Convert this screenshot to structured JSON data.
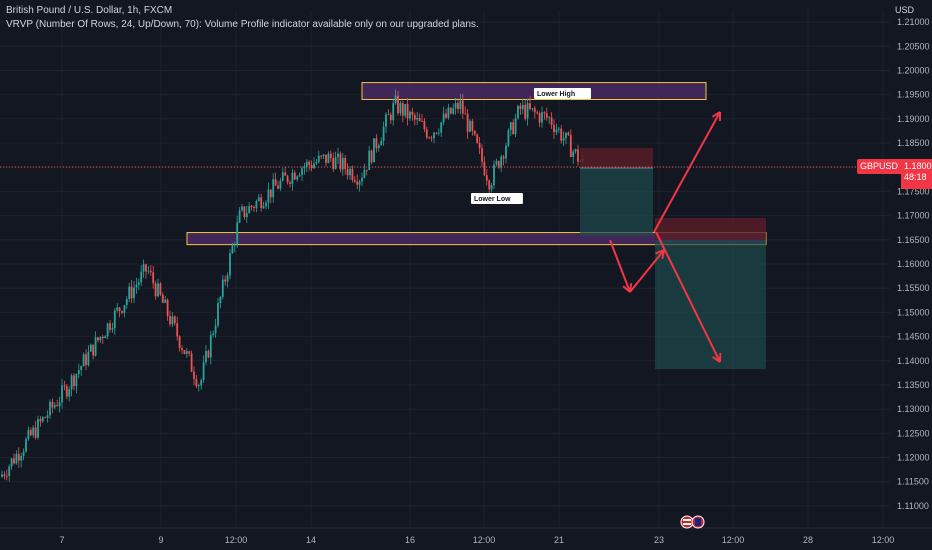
{
  "legend": {
    "symbol_line": "British Pound / U.S. Dollar, 1h, FXCM",
    "indicator_line": "VRVP (Number Of Rows, 24, Up/Down, 70): Volume Profile indicator available only on our upgraded plans."
  },
  "axis": {
    "currency": "USD",
    "y_ticks": [
      "1.21000",
      "1.20500",
      "1.20000",
      "1.19500",
      "1.19000",
      "1.18500",
      "1.18000",
      "1.17500",
      "1.17000",
      "1.16500",
      "1.16000",
      "1.15500",
      "1.15000",
      "1.14500",
      "1.14000",
      "1.13500",
      "1.13000",
      "1.12500",
      "1.12000",
      "1.11500",
      "1.11000"
    ],
    "x_ticks": [
      "7",
      "9",
      "12:00",
      "14",
      "16",
      "12:00",
      "21",
      "23",
      "12:00",
      "28",
      "12:00"
    ]
  },
  "price_label": {
    "symbol": "GBPUSD",
    "price": "1.18005",
    "countdown": "48:18"
  },
  "annotations": {
    "lower_high": "Lower High",
    "lower_low": "Lower Low"
  },
  "colors": {
    "background": "#131722",
    "up": "#26a69a",
    "down": "#ef5350",
    "zone_border": "#f5c542",
    "zone_fill": "#4a2a63",
    "arrow": "#f23645",
    "target_fill": "#1d4a4a",
    "stop_fill": "#5a1e28"
  },
  "chart_data": {
    "type": "candlestick",
    "title": "British Pound / U.S. Dollar, 1h, FXCM",
    "ylim": [
      1.1075,
      1.2125
    ],
    "approx_close_path": [
      {
        "date": "6",
        "close": 1.116
      },
      {
        "date": "7",
        "close": 1.133
      },
      {
        "date": "8",
        "close": 1.148
      },
      {
        "date": "9",
        "close": 1.159
      },
      {
        "date": "10",
        "close": 1.145
      },
      {
        "date": "10",
        "close": 1.135
      },
      {
        "date": "12",
        "close": 1.17
      },
      {
        "date": "13",
        "close": 1.18
      },
      {
        "date": "14",
        "close": 1.182
      },
      {
        "date": "15",
        "close": 1.178
      },
      {
        "date": "16",
        "close": 1.193
      },
      {
        "date": "17",
        "close": 1.187
      },
      {
        "date": "18",
        "close": 1.193
      },
      {
        "date": "19",
        "close": 1.177
      },
      {
        "date": "20",
        "close": 1.192
      },
      {
        "date": "21",
        "close": 1.19
      },
      {
        "date": "21",
        "close": 1.18
      }
    ],
    "zones": [
      {
        "name": "resistance",
        "low": 1.194,
        "high": 1.1975
      },
      {
        "name": "support",
        "low": 1.164,
        "high": 1.1665
      }
    ]
  }
}
